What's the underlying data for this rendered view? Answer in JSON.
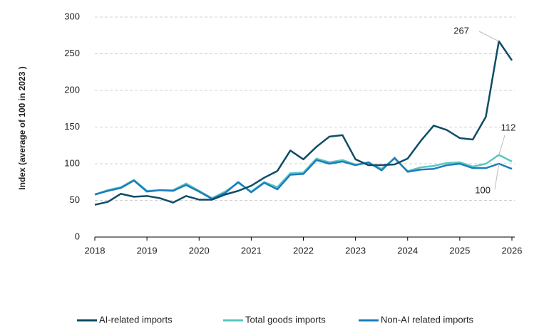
{
  "chart_data": {
    "type": "line",
    "y_label": "Index (average of 100 in 2023 )",
    "x": [
      2018,
      2018.25,
      2018.5,
      2018.75,
      2019,
      2019.25,
      2019.5,
      2019.75,
      2020,
      2020.25,
      2020.5,
      2020.75,
      2021,
      2021.25,
      2021.5,
      2021.75,
      2022,
      2022.25,
      2022.5,
      2022.75,
      2023,
      2023.25,
      2023.5,
      2023.75,
      2024,
      2024.25,
      2024.5,
      2024.75,
      2025,
      2025.25,
      2025.5,
      2025.75,
      2026
    ],
    "series": [
      {
        "name": "AI-related imports",
        "color": "#0f4c66",
        "values": [
          44,
          48,
          59,
          55,
          56,
          53,
          47,
          56,
          51,
          51,
          58,
          63,
          70,
          81,
          90,
          118,
          106,
          123,
          137,
          139,
          106,
          98,
          98,
          99,
          107,
          131,
          152,
          146,
          135,
          133,
          164,
          267,
          241
        ]
      },
      {
        "name": "Total goods imports",
        "color": "#5cc6c0",
        "values": [
          58,
          64,
          68,
          78,
          63,
          64,
          64,
          73,
          63,
          53,
          62,
          74,
          62,
          75,
          68,
          87,
          88,
          107,
          102,
          105,
          99,
          101,
          93,
          107,
          90,
          95,
          97,
          101,
          102,
          96,
          100,
          112,
          103
        ]
      },
      {
        "name": "Non-AI related imports",
        "color": "#1a7dbf",
        "values": [
          58,
          63,
          67,
          77,
          62,
          64,
          63,
          71,
          62,
          52,
          60,
          75,
          61,
          74,
          65,
          85,
          86,
          105,
          100,
          103,
          98,
          102,
          91,
          108,
          89,
          92,
          93,
          98,
          100,
          94,
          94,
          100,
          93
        ]
      }
    ],
    "xlim": [
      2018,
      2026
    ],
    "xticks": [
      2018,
      2019,
      2020,
      2021,
      2022,
      2023,
      2024,
      2025,
      2026
    ],
    "ylim": [
      0,
      300
    ],
    "yticks": [
      0,
      50,
      100,
      150,
      200,
      250,
      300
    ],
    "grid": true,
    "legend": "bottom"
  }
}
